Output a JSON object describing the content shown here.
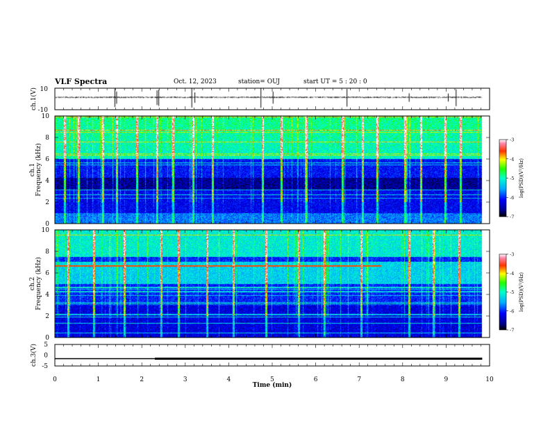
{
  "header": {
    "title": "VLF Spectra",
    "date": "Oct. 12, 2023",
    "station": "station= OUJ",
    "start": "start  UT =  5 : 20 : 0"
  },
  "chart_data": [
    {
      "id": "ch1-waveform",
      "type": "line",
      "ylabel": "ch.1(V)",
      "ylim": [
        -10,
        10
      ],
      "yticks": [
        "10",
        "-10"
      ],
      "xlim": [
        0,
        10
      ],
      "x_end": 9.83,
      "baseline": 1.5,
      "noise_amplitude": 0.7,
      "spike_times": [
        1.38,
        1.42,
        2.35,
        2.39,
        3.15,
        3.22,
        4.74,
        5.02,
        6.72,
        8.15,
        9.05,
        9.23
      ]
    },
    {
      "id": "ch1-spectrogram",
      "type": "heatmap",
      "panel_label": "ch.1",
      "ylabel": "Frequency (kHz)",
      "xlim": [
        0,
        10
      ],
      "ylim": [
        0,
        10
      ],
      "yticks": [
        "0",
        "2",
        "4",
        "6",
        "8",
        "10"
      ],
      "x_end": 9.83,
      "colorbar": {
        "label": "log(PSD)(V²/Hz)",
        "range": [
          -7,
          -3
        ],
        "ticks": [
          "-3",
          "-4",
          "-5",
          "-6",
          "-7"
        ]
      },
      "features": {
        "dark_band_khz": [
          3.2,
          4.3
        ],
        "noise_edge_khz": 6.0,
        "spheric_times": [
          0.22,
          0.55,
          1.1,
          1.42,
          1.88,
          2.35,
          2.72,
          3.18,
          3.62,
          4.78,
          5.2,
          5.78,
          6.62,
          7.08,
          7.42,
          8.05,
          8.42,
          8.98,
          9.33
        ]
      }
    },
    {
      "id": "ch2-spectrogram",
      "type": "heatmap",
      "panel_label": "ch.2",
      "ylabel": "Frequency (kHz)",
      "xlim": [
        0,
        10
      ],
      "ylim": [
        0,
        10
      ],
      "yticks": [
        "0",
        "2",
        "4",
        "6",
        "8",
        "10"
      ],
      "x_end": 9.83,
      "colorbar": {
        "label": "log(PSD)(V²/Hz)",
        "range": [
          -7,
          -3
        ],
        "ticks": [
          "-3",
          "-4",
          "-5",
          "-6",
          "-7"
        ]
      },
      "features": {
        "hiss_band_khz": [
          5.0,
          7.0
        ],
        "bright_line_khz": 6.7,
        "spheric_times": [
          0.3,
          0.9,
          1.6,
          2.45,
          2.85,
          3.5,
          4.1,
          4.85,
          5.6,
          6.2,
          7.05,
          8.15,
          8.7,
          9.3
        ]
      }
    },
    {
      "id": "ch3-waveform",
      "type": "line",
      "ylabel": "ch.3(V)",
      "ylim": [
        -5,
        5
      ],
      "yticks": [
        "5",
        "0",
        "-5"
      ],
      "xlim": [
        0,
        10
      ],
      "x_end": 9.83,
      "level": -1.6,
      "thick_from": 2.3
    }
  ],
  "xaxis": {
    "label": "Time (min)",
    "ticks": [
      "0",
      "1",
      "2",
      "3",
      "4",
      "5",
      "6",
      "7",
      "8",
      "9",
      "10"
    ]
  }
}
